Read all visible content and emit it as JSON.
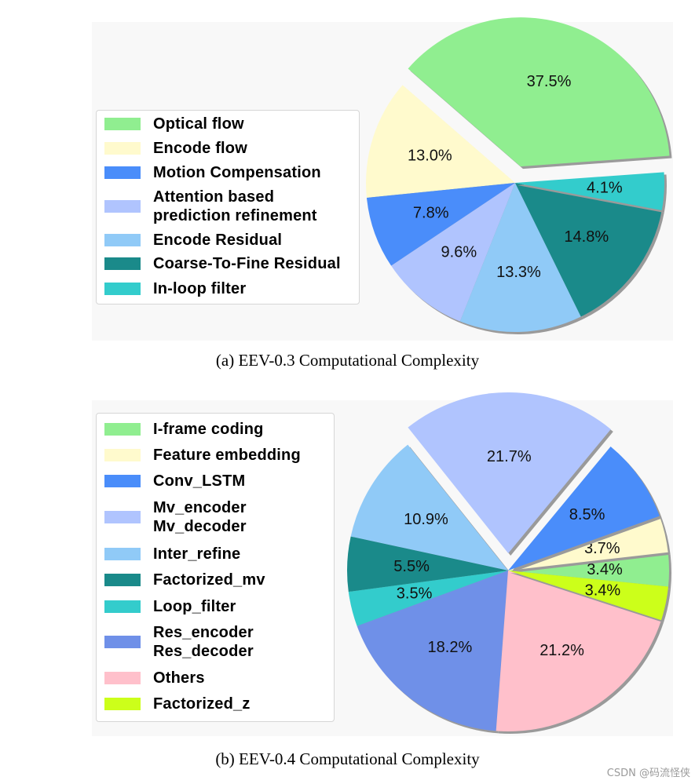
{
  "chart_data": [
    {
      "type": "pie",
      "caption": "(a)  EEV-0.3 Computational Complexity",
      "legend_position": "left",
      "slices": [
        {
          "label": "Optical flow",
          "value": 37.5,
          "text": "37.5%",
          "color": "#90EE90",
          "exploded": true
        },
        {
          "label": "Encode flow",
          "value": 13.0,
          "text": "13.0%",
          "color": "#FFFACD",
          "exploded": false
        },
        {
          "label": "Motion Compensation",
          "value": 7.8,
          "text": "7.8%",
          "color": "#4A8DFA",
          "exploded": false
        },
        {
          "label": "Attention based\nprediction refinement",
          "value": 9.6,
          "text": "9.6%",
          "color": "#B0C4FE",
          "exploded": false
        },
        {
          "label": "Encode Residual",
          "value": 13.3,
          "text": "13.3%",
          "color": "#90CAF7",
          "exploded": false
        },
        {
          "label": "Coarse-To-Fine Residual",
          "value": 14.8,
          "text": "14.8%",
          "color": "#1A8A8A",
          "exploded": false
        },
        {
          "label": "In-loop filter",
          "value": 4.1,
          "text": "4.1%",
          "color": "#33CCCC",
          "exploded": false
        }
      ]
    },
    {
      "type": "pie",
      "caption": "(b)  EEV-0.4 Computational Complexity",
      "legend_position": "left",
      "slices": [
        {
          "label": "I-frame coding",
          "value": 3.4,
          "text": "3.4%",
          "color": "#90EE90",
          "exploded": false
        },
        {
          "label": "Feature embedding",
          "value": 3.7,
          "text": "3.7%",
          "color": "#FFFACD",
          "exploded": false
        },
        {
          "label": "Conv_LSTM",
          "value": 8.5,
          "text": "8.5%",
          "color": "#4A8DFA",
          "exploded": false
        },
        {
          "label": "Mv_encoder\nMv_decoder",
          "value": 21.7,
          "text": "21.7%",
          "color": "#B0C4FE",
          "exploded": true
        },
        {
          "label": "Inter_refine",
          "value": 10.9,
          "text": "10.9%",
          "color": "#90CAF7",
          "exploded": false
        },
        {
          "label": "Factorized_mv",
          "value": 5.5,
          "text": "5.5%",
          "color": "#1A8A8A",
          "exploded": false
        },
        {
          "label": "Loop_filter",
          "value": 3.5,
          "text": "3.5%",
          "color": "#33CCCC",
          "exploded": false
        },
        {
          "label": "Res_encoder\nRes_decoder",
          "value": 18.2,
          "text": "18.2%",
          "color": "#6F90E8",
          "exploded": false
        },
        {
          "label": "Others",
          "value": 21.2,
          "text": "21.2%",
          "color": "#FFC0CB",
          "exploded": false
        },
        {
          "label": "Factorized_z",
          "value": 3.4,
          "text": "3.4%",
          "color": "#CCFF1A",
          "exploded": false
        }
      ]
    }
  ],
  "watermark": "CSDN @码流怪侠"
}
